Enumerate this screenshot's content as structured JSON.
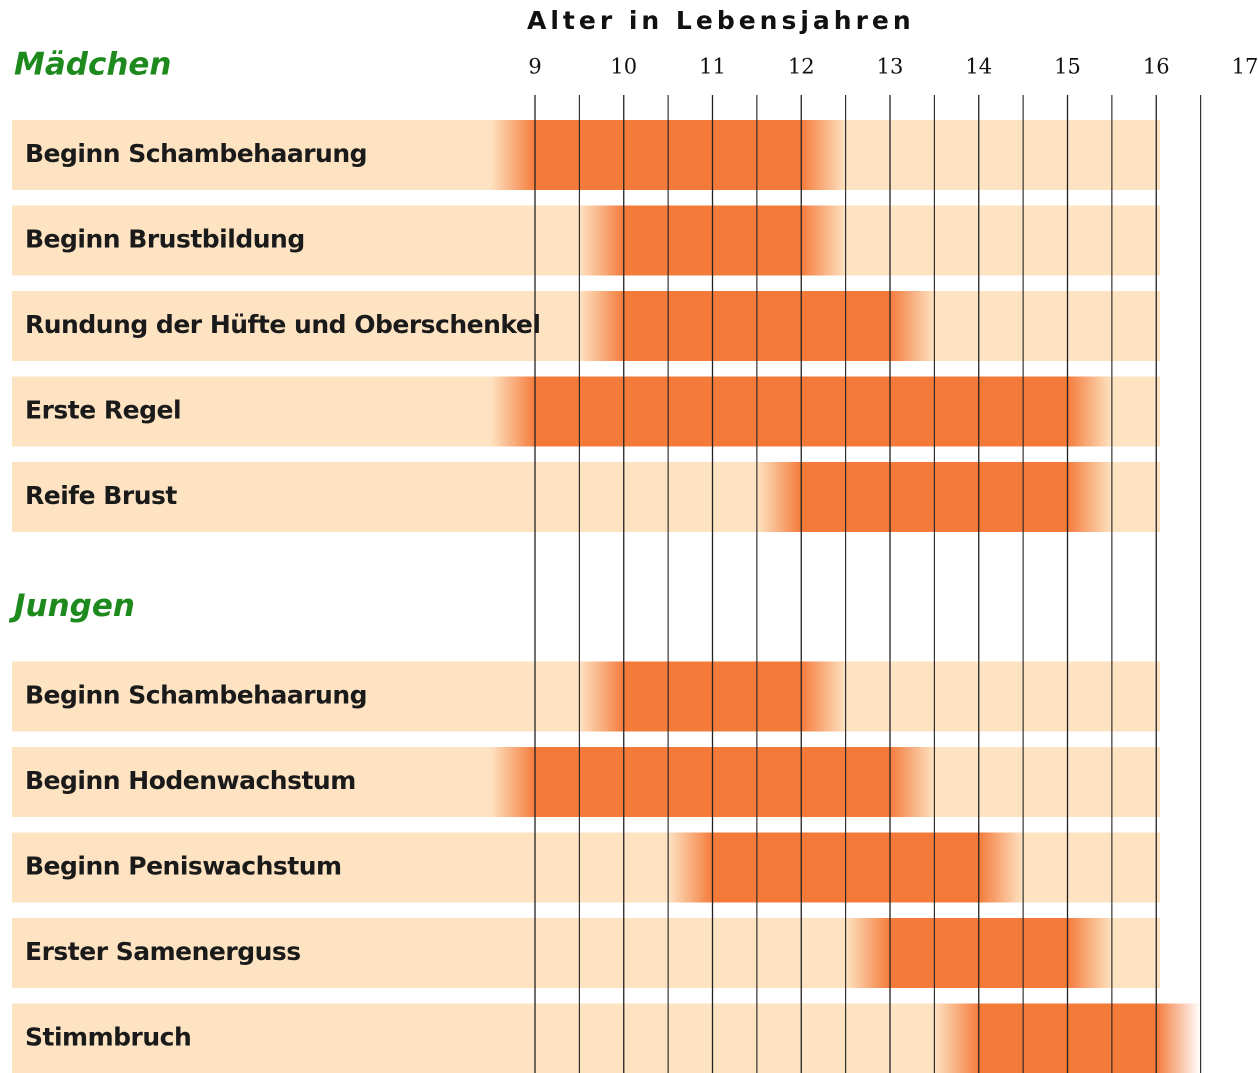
{
  "chart_data": {
    "type": "range",
    "axis_title": "Alter in Lebensjahren",
    "xlim": [
      9,
      17
    ],
    "xticks": [
      9,
      10,
      11,
      12,
      13,
      14,
      15,
      16,
      17
    ],
    "grid": true,
    "color": "#f47a3a",
    "band_color": "#fde3c2",
    "groups": [
      {
        "name": "Mädchen",
        "categories": [
          "Beginn Schambehaarung",
          "Beginn Brustbildung",
          "Rundung der Hüfte und Oberschenkel",
          "Erste Regel",
          "Reife Brust"
        ],
        "start": [
          8.5,
          9.5,
          9.5,
          8.5,
          11.5
        ],
        "end": [
          12.5,
          12.5,
          13.5,
          15.5,
          15.5
        ]
      },
      {
        "name": "Jungen",
        "categories": [
          "Beginn Schambehaarung",
          "Beginn Hodenwachstum",
          "Beginn Peniswachstum",
          "Erster Samenerguss",
          "Stimmbruch"
        ],
        "start": [
          9.5,
          8.5,
          10.5,
          12.5,
          13.5
        ],
        "end": [
          12.5,
          13.5,
          14.5,
          15.5,
          16.5
        ]
      }
    ]
  }
}
